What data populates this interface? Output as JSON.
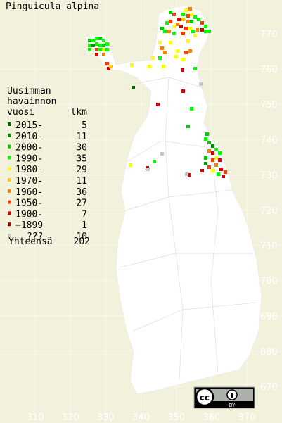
{
  "title": "Pinguicula alpina",
  "legend": {
    "heading": [
      "Uusimman",
      "havainnon",
      "vuosi"
    ],
    "count_heading": "lkm",
    "items": [
      {
        "label": "2015-",
        "count": 5,
        "color": "#006400"
      },
      {
        "label": "2010-",
        "count": 11,
        "color": "#008c00"
      },
      {
        "label": "2000-",
        "count": 30,
        "color": "#00c800"
      },
      {
        "label": "1990-",
        "count": 35,
        "color": "#00ff00"
      },
      {
        "label": "1980-",
        "count": 29,
        "color": "#ffff00"
      },
      {
        "label": "1970-",
        "count": 11,
        "color": "#ffc800"
      },
      {
        "label": "1960-",
        "count": 36,
        "color": "#ff8000"
      },
      {
        "label": "1950-",
        "count": 27,
        "color": "#ff3c00"
      },
      {
        "label": "1900-",
        "count": 7,
        "color": "#d80000"
      },
      {
        "label": "−1899",
        "count": 1,
        "color": "#960000"
      },
      {
        "label": "???",
        "count": 10,
        "color": "#c8c8c8"
      }
    ],
    "total_label": "Yhteensä",
    "total": 202
  },
  "grid": {
    "y_labels": [
      770,
      760,
      750,
      740,
      730,
      720,
      710,
      700,
      690,
      680,
      670
    ],
    "x_labels": [
      310,
      320,
      330,
      340,
      350,
      360,
      370
    ]
  },
  "license": {
    "logo": "cc",
    "label": "BY"
  }
}
